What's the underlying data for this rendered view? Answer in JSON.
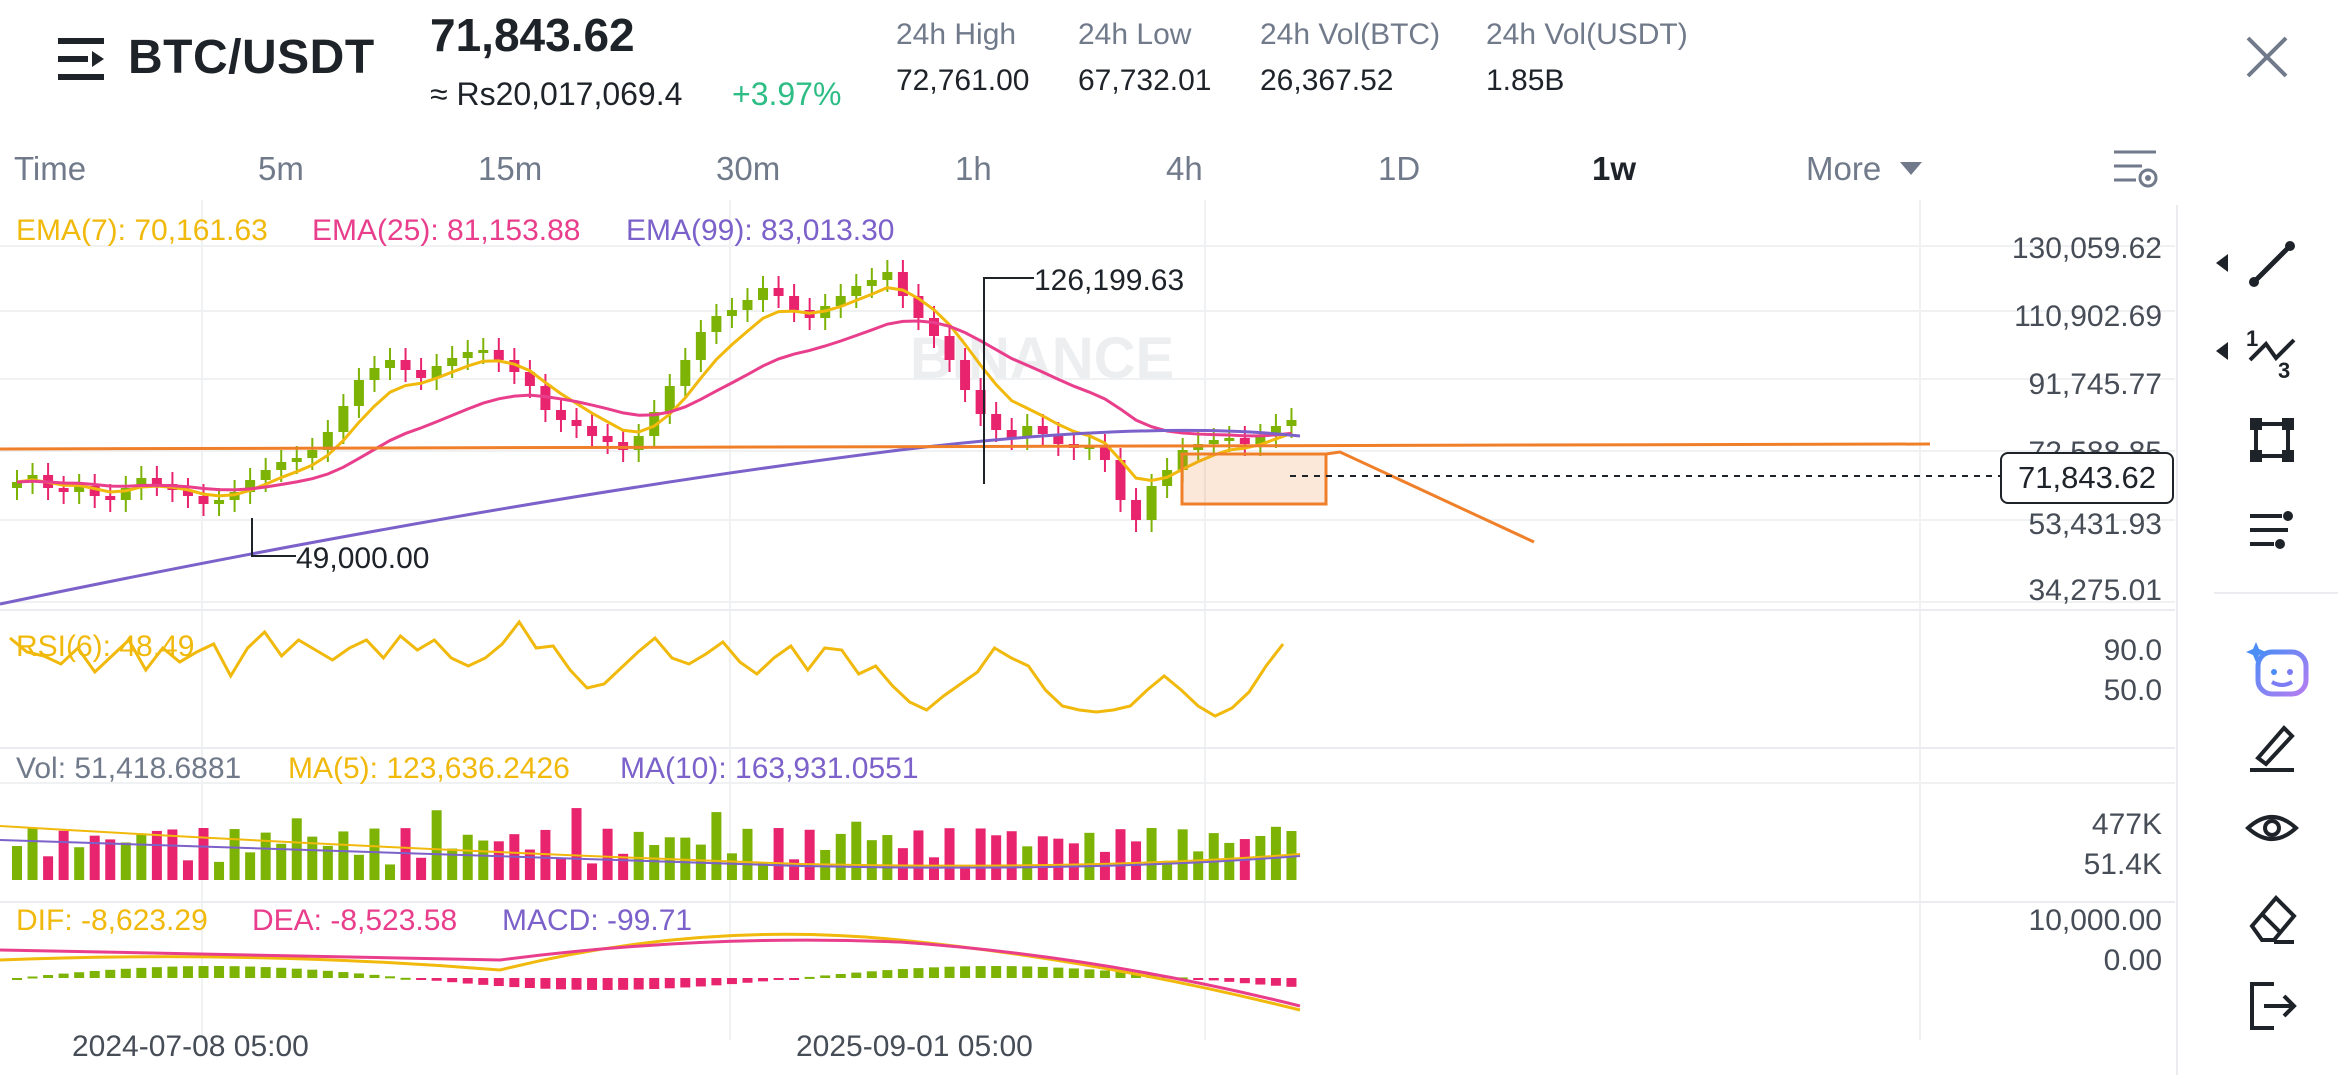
{
  "header": {
    "pair": "BTC/USDT",
    "last_price": "71,843.62",
    "fiat_price": "≈ Rs20,017,069.4",
    "change": "+3.97%",
    "stats": [
      {
        "label": "24h High",
        "value": "72,761.00"
      },
      {
        "label": "24h Low",
        "value": "67,732.01"
      },
      {
        "label": "24h Vol(BTC)",
        "value": "26,367.52"
      },
      {
        "label": "24h Vol(USDT)",
        "value": "1.85B"
      }
    ]
  },
  "tabs": [
    "Time",
    "5m",
    "15m",
    "30m",
    "1h",
    "4h",
    "1D",
    "1w",
    "More"
  ],
  "active_tab": "1w",
  "main_chart": {
    "ema7_label": "EMA(7): 70,161.63",
    "ema25_label": "EMA(25): 81,153.88",
    "ema99_label": "EMA(99): 83,013.30",
    "y_axis": [
      "130,059.62",
      "110,902.69",
      "91,745.77",
      "72,588.85",
      "53,431.93",
      "34,275.01"
    ],
    "high_marker": "126,199.63",
    "low_marker": "49,000.00",
    "current_price_tag": "71,843.62",
    "watermark": "BINANCE"
  },
  "rsi": {
    "label": "RSI(6): 48.49",
    "y_axis": [
      "90.0",
      "50.0"
    ]
  },
  "volume": {
    "vol_label": "Vol: 51,418.6881",
    "ma5_label": "MA(5): 123,636.2426",
    "ma10_label": "MA(10): 163,931.0551",
    "y_axis": [
      "477K",
      "51.4K"
    ]
  },
  "macd": {
    "dif_label": "DIF: -8,623.29",
    "dea_label": "DEA: -8,523.58",
    "macd_label": "MACD: -99.71",
    "y_axis": [
      "10,000.00",
      "0.00"
    ]
  },
  "x_axis": [
    "2024-07-08 05:00",
    "2025-09-01 05:00"
  ],
  "colors": {
    "up": "#7cb305",
    "down": "#e8246e",
    "ema7": "#f0b90b",
    "ema25": "#e83e8c",
    "ema99": "#7b61c9",
    "drawing": "#f07f2a"
  },
  "toolbar_icons": [
    "trend-line-icon",
    "fib-tool-icon",
    "rectangle-tool-icon",
    "parallel-lines-icon",
    "ai-assistant-icon",
    "brush-icon",
    "visibility-icon",
    "eraser-icon",
    "exit-icon"
  ]
}
